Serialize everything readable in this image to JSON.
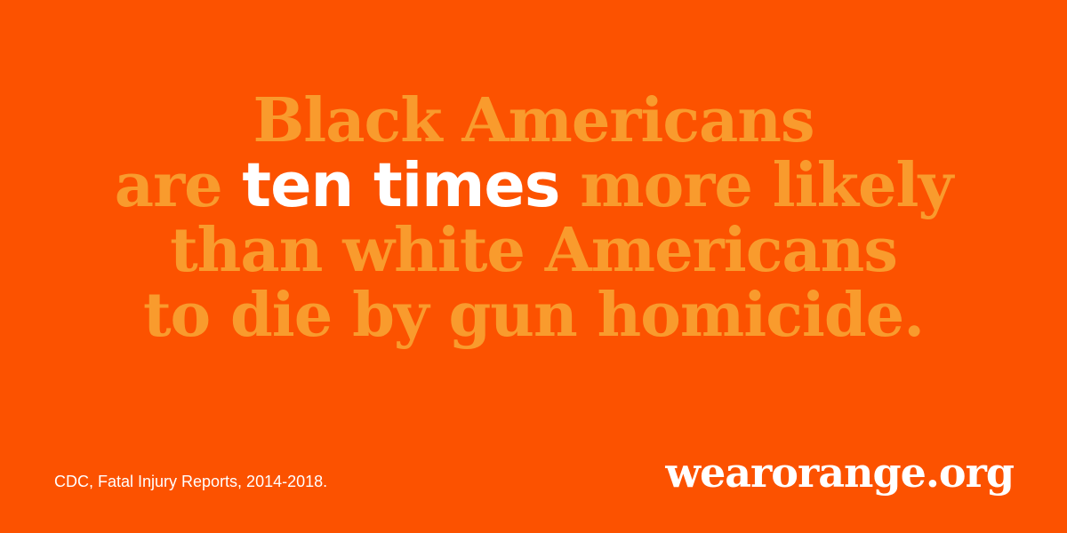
{
  "headline": {
    "line1": "Black Americans",
    "line2_before": "are ",
    "line2_emphasis": "ten times",
    "line2_after": " more likely",
    "line3": "than white Americans",
    "line4": "to die by gun homicide."
  },
  "footer": {
    "source": "CDC, Fatal Injury Reports, 2014-2018.",
    "brand": "wearorange.org"
  },
  "colors": {
    "background": "#fc5200",
    "headline_text": "#f99b2d",
    "emphasis_text": "#ffffff",
    "footer_text": "#ffffff"
  }
}
